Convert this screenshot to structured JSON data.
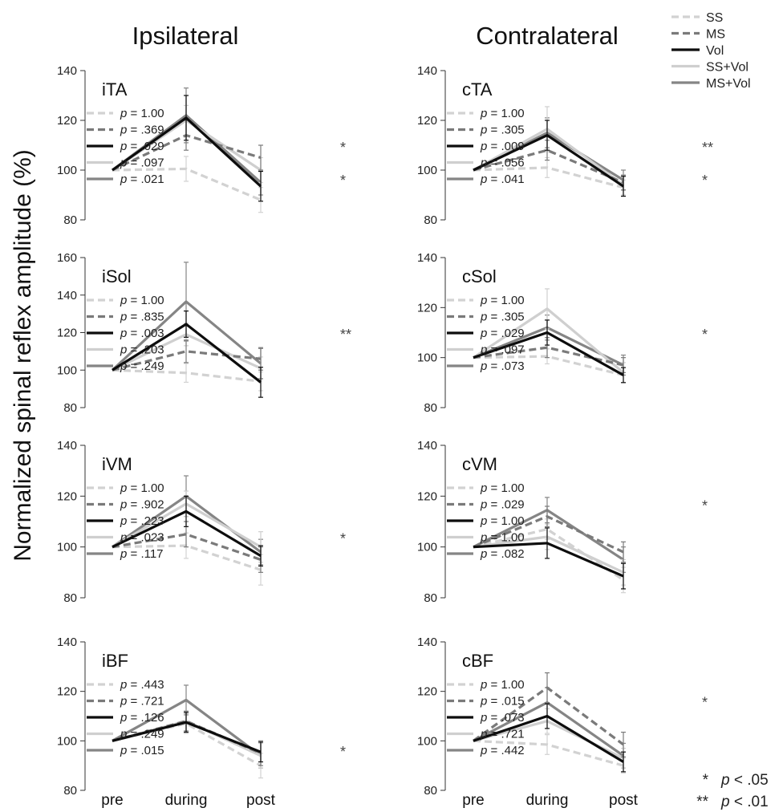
{
  "column_titles": {
    "left": "Ipsilateral",
    "right": "Contralateral"
  },
  "ylabel": "Normalized spinal reflex amplitude (%)",
  "styles": {
    "SS": {
      "color": "#d2d2d2",
      "dash": true
    },
    "MS": {
      "color": "#7a7a7a",
      "dash": true
    },
    "Vol": {
      "color": "#0d0d0d",
      "dash": false
    },
    "SS+Vol": {
      "color": "#cfcfcf",
      "dash": false
    },
    "MS+Vol": {
      "color": "#858585",
      "dash": false
    }
  },
  "legend": [
    {
      "key": "SS",
      "label": "SS"
    },
    {
      "key": "MS",
      "label": "MS"
    },
    {
      "key": "Vol",
      "label": "Vol"
    },
    {
      "key": "SS+Vol",
      "label": "SS+Vol"
    },
    {
      "key": "MS+Vol",
      "label": "MS+Vol"
    }
  ],
  "significance_key": [
    {
      "symbol": "*",
      "label": "p < .05"
    },
    {
      "symbol": "**",
      "label": "p < .01"
    }
  ],
  "chart_data": [
    {
      "type": "line",
      "label": "iTA",
      "categories": [
        "pre",
        "during",
        "post"
      ],
      "ylim": [
        80,
        140
      ],
      "yticks": [
        80,
        100,
        120,
        140
      ],
      "series": [
        {
          "name": "SS",
          "values": [
            100,
            100.5,
            88
          ],
          "err": [
            0,
            5,
            5
          ],
          "p": "1.00",
          "sig": ""
        },
        {
          "name": "MS",
          "values": [
            100,
            114,
            105
          ],
          "err": [
            0,
            6,
            5
          ],
          "p": ".369",
          "sig": ""
        },
        {
          "name": "Vol",
          "values": [
            100,
            121,
            93.5
          ],
          "err": [
            0,
            9,
            6
          ],
          "p": ".029",
          "sig": "*"
        },
        {
          "name": "SS+Vol",
          "values": [
            100,
            120,
            100
          ],
          "err": [
            0,
            6,
            5
          ],
          "p": ".097",
          "sig": ""
        },
        {
          "name": "MS+Vol",
          "values": [
            100,
            122,
            95
          ],
          "err": [
            0,
            11,
            5
          ],
          "p": ".021",
          "sig": "*"
        }
      ]
    },
    {
      "type": "line",
      "label": "cTA",
      "categories": [
        "pre",
        "during",
        "post"
      ],
      "ylim": [
        80,
        140
      ],
      "yticks": [
        80,
        100,
        120,
        140
      ],
      "series": [
        {
          "name": "SS",
          "values": [
            100,
            101,
            93
          ],
          "err": [
            0,
            4,
            3
          ],
          "p": "1.00",
          "sig": ""
        },
        {
          "name": "MS",
          "values": [
            100,
            108,
            95
          ],
          "err": [
            0,
            4,
            3
          ],
          "p": ".305",
          "sig": ""
        },
        {
          "name": "Vol",
          "values": [
            100,
            114,
            93.5
          ],
          "err": [
            0,
            6,
            4
          ],
          "p": ".009",
          "sig": "**"
        },
        {
          "name": "SS+Vol",
          "values": [
            100,
            116.5,
            94
          ],
          "err": [
            0,
            9,
            4
          ],
          "p": ".056",
          "sig": ""
        },
        {
          "name": "MS+Vol",
          "values": [
            100,
            115,
            96
          ],
          "err": [
            0,
            6,
            4
          ],
          "p": ".041",
          "sig": "*"
        }
      ]
    },
    {
      "type": "line",
      "label": "iSol",
      "categories": [
        "pre",
        "during",
        "post"
      ],
      "ylim": [
        80,
        160
      ],
      "yticks": [
        80,
        100,
        120,
        140,
        160
      ],
      "series": [
        {
          "name": "SS",
          "values": [
            100,
            98.5,
            94
          ],
          "err": [
            0,
            5,
            5
          ],
          "p": "1.00",
          "sig": ""
        },
        {
          "name": "MS",
          "values": [
            100,
            110,
            106
          ],
          "err": [
            0,
            6,
            6
          ],
          "p": ".835",
          "sig": ""
        },
        {
          "name": "Vol",
          "values": [
            100,
            124.5,
            93.5
          ],
          "err": [
            0,
            7,
            8
          ],
          "p": ".003",
          "sig": "**"
        },
        {
          "name": "SS+Vol",
          "values": [
            100,
            119,
            101
          ],
          "err": [
            0,
            6,
            6
          ],
          "p": ".203",
          "sig": ""
        },
        {
          "name": "MS+Vol",
          "values": [
            100,
            136.5,
            103.5
          ],
          "err": [
            0,
            21,
            8
          ],
          "p": ".249",
          "sig": ""
        }
      ]
    },
    {
      "type": "line",
      "label": "cSol",
      "categories": [
        "pre",
        "during",
        "post"
      ],
      "ylim": [
        80,
        140
      ],
      "yticks": [
        80,
        100,
        120,
        140
      ],
      "series": [
        {
          "name": "SS",
          "values": [
            100,
            100.5,
            93
          ],
          "err": [
            0,
            3,
            3
          ],
          "p": "1.00",
          "sig": ""
        },
        {
          "name": "MS",
          "values": [
            100,
            104,
            97
          ],
          "err": [
            0,
            4,
            3
          ],
          "p": ".305",
          "sig": ""
        },
        {
          "name": "Vol",
          "values": [
            100,
            110,
            93
          ],
          "err": [
            0,
            5,
            3
          ],
          "p": ".029",
          "sig": "*"
        },
        {
          "name": "SS+Vol",
          "values": [
            100,
            119.5,
            94
          ],
          "err": [
            0,
            8,
            4
          ],
          "p": ".097",
          "sig": ""
        },
        {
          "name": "MS+Vol",
          "values": [
            100,
            112,
            97
          ],
          "err": [
            0,
            5,
            4
          ],
          "p": ".073",
          "sig": ""
        }
      ]
    },
    {
      "type": "line",
      "label": "iVM",
      "categories": [
        "pre",
        "during",
        "post"
      ],
      "ylim": [
        80,
        140
      ],
      "yticks": [
        80,
        100,
        120,
        140
      ],
      "series": [
        {
          "name": "SS",
          "values": [
            100,
            100.5,
            91
          ],
          "err": [
            0,
            5,
            6
          ],
          "p": "1.00",
          "sig": ""
        },
        {
          "name": "MS",
          "values": [
            100,
            105,
            95
          ],
          "err": [
            0,
            5,
            5
          ],
          "p": ".902",
          "sig": ""
        },
        {
          "name": "Vol",
          "values": [
            100,
            114,
            96.5
          ],
          "err": [
            0,
            6,
            4
          ],
          "p": ".223",
          "sig": ""
        },
        {
          "name": "SS+Vol",
          "values": [
            100,
            117,
            100
          ],
          "err": [
            0,
            5,
            6
          ],
          "p": ".023",
          "sig": "*"
        },
        {
          "name": "MS+Vol",
          "values": [
            100,
            120,
            98
          ],
          "err": [
            0,
            8,
            5
          ],
          "p": ".117",
          "sig": ""
        }
      ]
    },
    {
      "type": "line",
      "label": "cVM",
      "categories": [
        "pre",
        "during",
        "post"
      ],
      "ylim": [
        80,
        140
      ],
      "yticks": [
        80,
        100,
        120,
        140
      ],
      "series": [
        {
          "name": "SS",
          "values": [
            100,
            107,
            87
          ],
          "err": [
            0,
            4,
            5
          ],
          "p": "1.00",
          "sig": ""
        },
        {
          "name": "MS",
          "values": [
            100,
            112,
            98
          ],
          "err": [
            0,
            4,
            4
          ],
          "p": ".029",
          "sig": "*"
        },
        {
          "name": "Vol",
          "values": [
            100,
            101.5,
            88.5
          ],
          "err": [
            0,
            6,
            5
          ],
          "p": "1.00",
          "sig": ""
        },
        {
          "name": "SS+Vol",
          "values": [
            100,
            104,
            90
          ],
          "err": [
            0,
            5,
            5
          ],
          "p": "1.00",
          "sig": ""
        },
        {
          "name": "MS+Vol",
          "values": [
            100,
            114.5,
            95
          ],
          "err": [
            0,
            5,
            5
          ],
          "p": ".082",
          "sig": ""
        }
      ]
    },
    {
      "type": "line",
      "label": "iBF",
      "categories": [
        "pre",
        "during",
        "post"
      ],
      "ylim": [
        80,
        140
      ],
      "yticks": [
        80,
        100,
        120,
        140
      ],
      "series": [
        {
          "name": "SS",
          "values": [
            100,
            107,
            90
          ],
          "err": [
            0,
            4,
            5
          ],
          "p": ".443",
          "sig": ""
        },
        {
          "name": "MS",
          "values": [
            100,
            108,
            95
          ],
          "err": [
            0,
            4,
            5
          ],
          "p": ".721",
          "sig": ""
        },
        {
          "name": "Vol",
          "values": [
            100,
            107.5,
            95.5
          ],
          "err": [
            0,
            4,
            4
          ],
          "p": ".126",
          "sig": ""
        },
        {
          "name": "SS+Vol",
          "values": [
            100,
            108,
            94
          ],
          "err": [
            0,
            4,
            5
          ],
          "p": ".249",
          "sig": ""
        },
        {
          "name": "MS+Vol",
          "values": [
            100,
            116.5,
            94
          ],
          "err": [
            0,
            6,
            5
          ],
          "p": ".015",
          "sig": "*"
        }
      ]
    },
    {
      "type": "line",
      "label": "cBF",
      "categories": [
        "pre",
        "during",
        "post"
      ],
      "ylim": [
        80,
        140
      ],
      "yticks": [
        80,
        100,
        120,
        140
      ],
      "series": [
        {
          "name": "SS",
          "values": [
            100,
            98.5,
            90
          ],
          "err": [
            0,
            4,
            3
          ],
          "p": "1.00",
          "sig": ""
        },
        {
          "name": "MS",
          "values": [
            100,
            121.5,
            98.5
          ],
          "err": [
            0,
            6,
            5
          ],
          "p": ".015",
          "sig": "*"
        },
        {
          "name": "Vol",
          "values": [
            100,
            110,
            91.5
          ],
          "err": [
            0,
            5,
            4
          ],
          "p": ".073",
          "sig": ""
        },
        {
          "name": "SS+Vol",
          "values": [
            100,
            108,
            93
          ],
          "err": [
            0,
            5,
            4
          ],
          "p": ".721",
          "sig": ""
        },
        {
          "name": "MS+Vol",
          "values": [
            100,
            115.5,
            94
          ],
          "err": [
            0,
            6,
            5
          ],
          "p": ".442",
          "sig": ""
        }
      ]
    }
  ]
}
